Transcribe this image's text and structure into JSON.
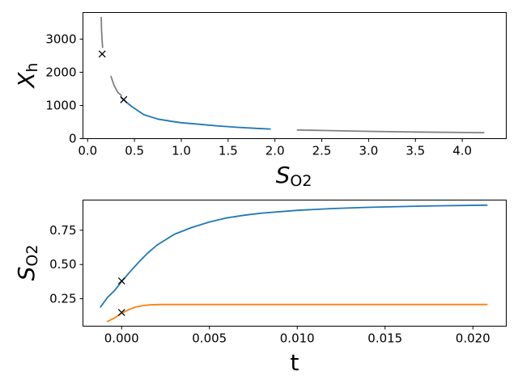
{
  "chart_data": [
    {
      "type": "line",
      "xlabel_main": "S",
      "xlabel_sub": "O2",
      "ylabel_main": "X",
      "ylabel_sub": "h",
      "xlim": [
        -0.05,
        4.47
      ],
      "ylim": [
        0,
        3800
      ],
      "xticks": [
        0.0,
        0.5,
        1.0,
        1.5,
        2.0,
        2.5,
        3.0,
        3.5,
        4.0
      ],
      "xtick_labels": [
        "0.0",
        "0.5",
        "1.0",
        "1.5",
        "2.0",
        "2.5",
        "3.0",
        "3.5",
        "4.0"
      ],
      "yticks": [
        0,
        1000,
        2000,
        3000
      ],
      "ytick_labels": [
        "0",
        "1000",
        "2000",
        "3000"
      ],
      "grid": false,
      "series": [
        {
          "color": "#808080",
          "segments": [
            [
              [
                0.145,
                3650
              ],
              [
                0.148,
                3300
              ],
              [
                0.155,
                2950
              ],
              [
                0.16,
                2750
              ]
            ],
            [
              [
                0.25,
                1870
              ],
              [
                0.28,
                1620
              ],
              [
                0.32,
                1400
              ],
              [
                0.36,
                1300
              ]
            ],
            [
              [
                2.24,
                260
              ],
              [
                2.5,
                245
              ],
              [
                3.0,
                220
              ],
              [
                3.5,
                200
              ],
              [
                4.0,
                185
              ],
              [
                4.23,
                180
              ]
            ]
          ]
        },
        {
          "color": "#1f77b4",
          "segments": [
            [
              [
                0.36,
                1230
              ],
              [
                0.39,
                1160
              ],
              [
                0.43,
                1060
              ],
              [
                0.48,
                950
              ],
              [
                0.6,
                720
              ],
              [
                0.75,
                590
              ],
              [
                0.9,
                520
              ],
              [
                1.0,
                480
              ],
              [
                1.2,
                430
              ],
              [
                1.4,
                380
              ],
              [
                1.6,
                340
              ],
              [
                1.8,
                310
              ],
              [
                1.95,
                290
              ]
            ]
          ]
        }
      ],
      "markers": [
        [
          0.155,
          2550
        ],
        [
          0.385,
          1175
        ]
      ]
    },
    {
      "type": "line",
      "xlabel": "t",
      "ylabel_main": "S",
      "ylabel_sub": "O2",
      "xlim": [
        -0.0022,
        0.0219
      ],
      "ylim": [
        0.05,
        0.97
      ],
      "xticks": [
        0.0,
        0.005,
        0.01,
        0.015,
        0.02
      ],
      "xtick_labels": [
        "0.000",
        "0.005",
        "0.010",
        "0.015",
        "0.020"
      ],
      "yticks": [
        0.25,
        0.5,
        0.75
      ],
      "ytick_labels": [
        "0.25",
        "0.50",
        "0.75"
      ],
      "grid": false,
      "series": [
        {
          "color": "#1f77b4",
          "points": [
            [
              -0.0012,
              0.19
            ],
            [
              -0.0008,
              0.26
            ],
            [
              -0.0004,
              0.31
            ],
            [
              0.0,
              0.375
            ],
            [
              0.0005,
              0.45
            ],
            [
              0.001,
              0.52
            ],
            [
              0.0015,
              0.585
            ],
            [
              0.002,
              0.64
            ],
            [
              0.003,
              0.72
            ],
            [
              0.004,
              0.77
            ],
            [
              0.005,
              0.81
            ],
            [
              0.006,
              0.84
            ],
            [
              0.007,
              0.86
            ],
            [
              0.008,
              0.875
            ],
            [
              0.01,
              0.895
            ],
            [
              0.012,
              0.908
            ],
            [
              0.014,
              0.917
            ],
            [
              0.016,
              0.923
            ],
            [
              0.018,
              0.928
            ],
            [
              0.0208,
              0.933
            ]
          ]
        },
        {
          "color": "#ff7f0e",
          "points": [
            [
              -0.0008,
              0.085
            ],
            [
              -0.0004,
              0.11
            ],
            [
              0.0,
              0.145
            ],
            [
              0.0004,
              0.17
            ],
            [
              0.0008,
              0.19
            ],
            [
              0.0012,
              0.2
            ],
            [
              0.0016,
              0.205
            ],
            [
              0.0022,
              0.208
            ],
            [
              0.005,
              0.208
            ],
            [
              0.01,
              0.208
            ],
            [
              0.015,
              0.208
            ],
            [
              0.0208,
              0.208
            ]
          ]
        }
      ],
      "markers": [
        [
          0.0,
          0.38
        ],
        [
          0.0,
          0.15
        ]
      ]
    }
  ]
}
